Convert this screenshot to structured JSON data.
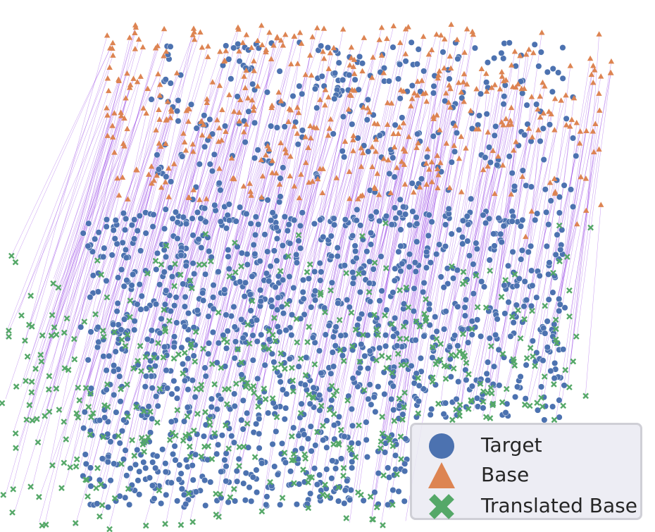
{
  "chart_data": {
    "type": "scatter",
    "title": "",
    "xlabel": "",
    "ylabel": "",
    "grid": false,
    "legend_placement": "lower-right",
    "series": [
      {
        "name": "Target",
        "marker": "circle",
        "color": "#4c72b0"
      },
      {
        "name": "Base",
        "marker": "triangle",
        "color": "#dd8452"
      },
      {
        "name": "Translated Base",
        "marker": "x",
        "color": "#55a868"
      }
    ],
    "connector_color": "#8a2be2"
  },
  "legend": {
    "items": [
      {
        "label": "Target",
        "icon": "circle-marker-icon",
        "color": "#4c72b0"
      },
      {
        "label": "Base",
        "icon": "triangle-marker-icon",
        "color": "#dd8452"
      },
      {
        "label": "Translated Base",
        "icon": "x-marker-icon",
        "color": "#55a868"
      }
    ]
  }
}
